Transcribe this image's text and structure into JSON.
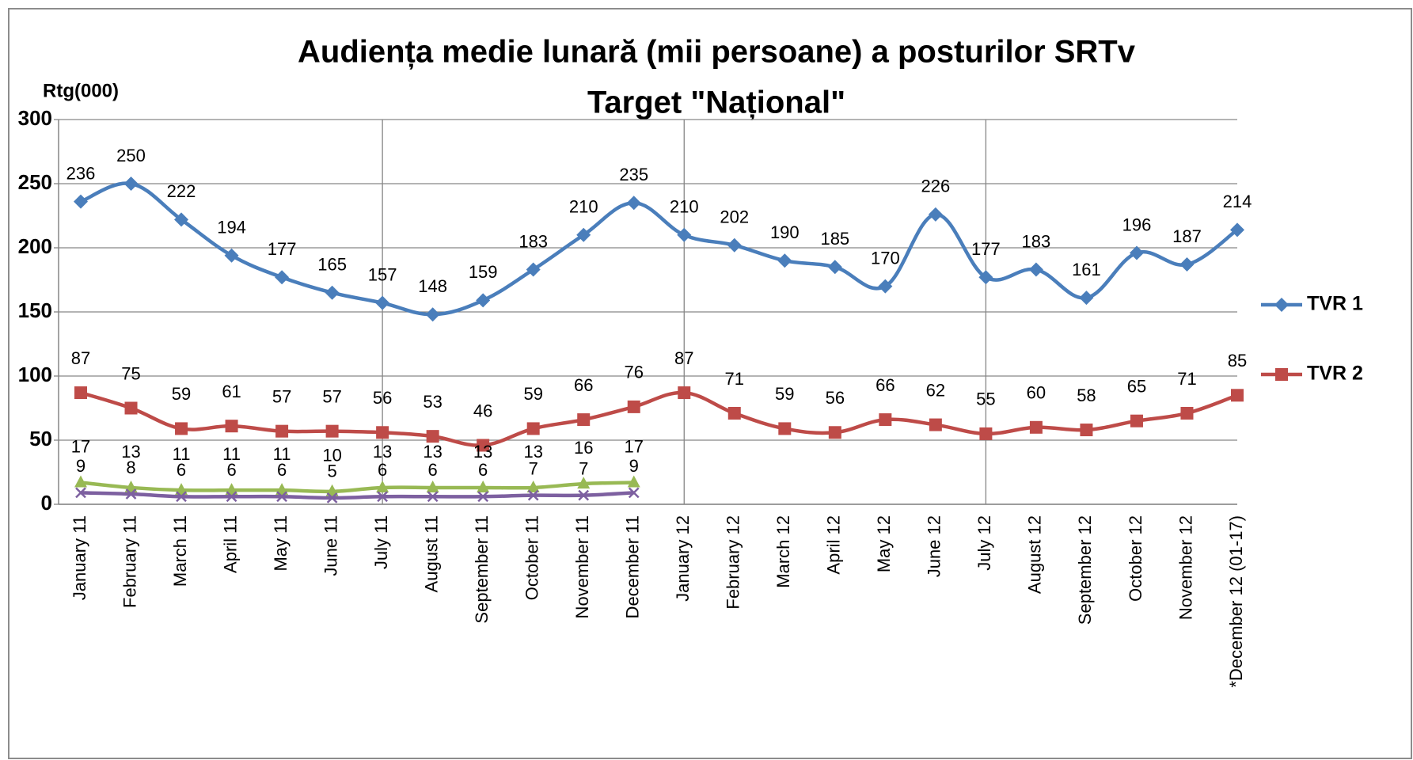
{
  "chart_data": {
    "type": "line",
    "title": "Audiența medie lunară (mii persoane) a posturilor SRTv",
    "subtitle": "Target \"Național\"",
    "y_axis_label": "Rtg(000)",
    "categories": [
      "January 11",
      "February 11",
      "March 11",
      "April 11",
      "May 11",
      "June 11",
      "July 11",
      "August 11",
      "September 11",
      "October 11",
      "November 11",
      "December 11",
      "January 12",
      "February 12",
      "March 12",
      "April 12",
      "May 12",
      "June 12",
      "July 12",
      "August 12",
      "September 12",
      "October 12",
      "November 12",
      "*December 12 (01-17)"
    ],
    "series": [
      {
        "name": "TVR 1",
        "color": "#4a7ebb",
        "marker": "diamond",
        "values": [
          236,
          250,
          222,
          194,
          177,
          165,
          157,
          148,
          159,
          183,
          210,
          235,
          210,
          202,
          190,
          185,
          170,
          226,
          177,
          183,
          161,
          196,
          187,
          214
        ]
      },
      {
        "name": "TVR 2",
        "color": "#be4b48",
        "marker": "square",
        "values": [
          87,
          75,
          59,
          61,
          57,
          57,
          56,
          53,
          46,
          59,
          66,
          76,
          87,
          71,
          59,
          56,
          66,
          62,
          55,
          60,
          58,
          65,
          71,
          85
        ]
      },
      {
        "color": "#98b954",
        "marker": "triangle",
        "values": [
          17,
          13,
          11,
          11,
          11,
          10,
          13,
          13,
          13,
          13,
          16,
          17,
          null,
          null,
          null,
          null,
          null,
          null,
          null,
          null,
          null,
          null,
          null,
          null
        ]
      },
      {
        "color": "#7d60a0",
        "marker": "x",
        "values": [
          9,
          8,
          6,
          6,
          6,
          5,
          6,
          6,
          6,
          7,
          7,
          9,
          null,
          null,
          null,
          null,
          null,
          null,
          null,
          null,
          null,
          null,
          null,
          null
        ]
      }
    ],
    "ylim": [
      0,
      300
    ],
    "yticks": [
      0,
      50,
      100,
      150,
      200,
      250,
      300
    ],
    "grid": true,
    "legend": "right"
  }
}
